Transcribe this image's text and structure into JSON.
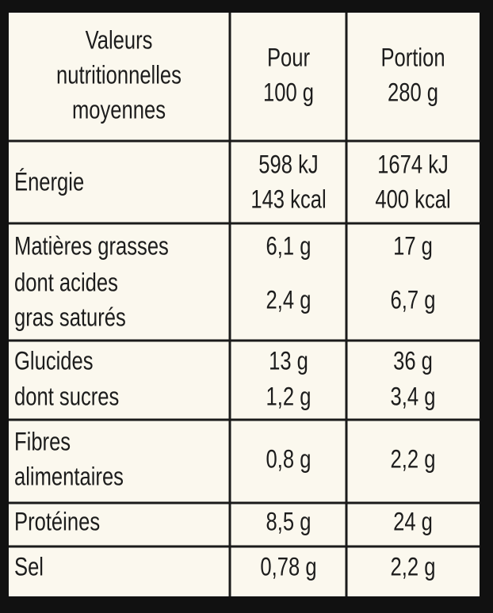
{
  "table": {
    "header": [
      [
        "Valeurs",
        "nutritionnelles",
        "moyennes"
      ],
      [
        "Pour",
        "100 g"
      ],
      [
        "Portion",
        "280 g"
      ]
    ],
    "rows": [
      [
        [
          "Énergie"
        ],
        [
          "598 kJ",
          "143 kcal"
        ],
        [
          "1674 kJ",
          "400 kcal"
        ]
      ],
      [
        [
          "Matières grasses"
        ],
        [
          "6,1 g"
        ],
        [
          "17 g"
        ]
      ],
      [
        [
          "dont acides",
          "gras saturés"
        ],
        [
          "2,4 g"
        ],
        [
          "6,7 g"
        ]
      ],
      [
        [
          "Glucides"
        ],
        [
          "13 g"
        ],
        [
          "36 g"
        ]
      ],
      [
        [
          "dont sucres"
        ],
        [
          "1,2 g"
        ],
        [
          "3,4 g"
        ]
      ],
      [
        [
          "Fibres",
          "alimentaires"
        ],
        [
          "0,8 g"
        ],
        [
          "2,2 g"
        ]
      ],
      [
        [
          "Protéines"
        ],
        [
          "8,5 g"
        ],
        [
          "24 g"
        ]
      ],
      [
        [
          "Sel"
        ],
        [
          "0,78 g"
        ],
        [
          "2,2 g"
        ]
      ]
    ]
  }
}
